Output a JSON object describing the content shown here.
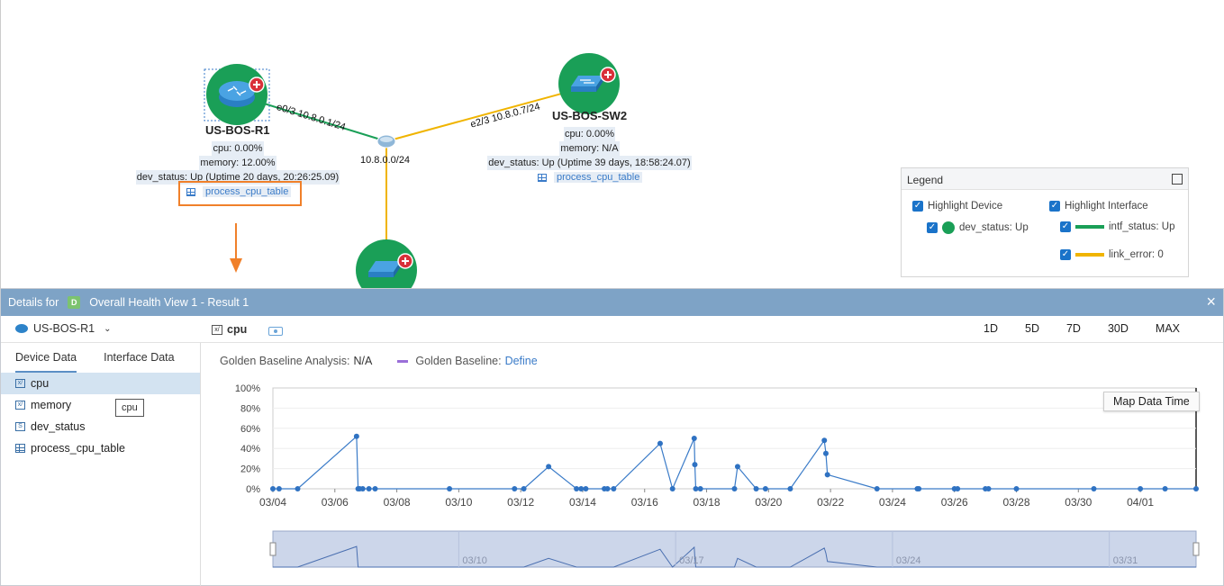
{
  "topology": {
    "devices": [
      {
        "name": "US-BOS-R1",
        "cpu": "cpu: 0.00%",
        "memory": "memory: 12.00%",
        "dev_status": "dev_status: Up (Uptime 20 days, 20:26:25.09)",
        "table": "process_cpu_table"
      },
      {
        "name": "US-BOS-SW2",
        "cpu": "cpu: 0.00%",
        "memory": "memory: N/A",
        "dev_status": "dev_status: Up (Uptime 39 days, 18:58:24.07)",
        "table": "process_cpu_table"
      }
    ],
    "links": [
      {
        "label": "e0/3 10.8.0.1/24"
      },
      {
        "label": "e2/3 10.8.0.7/24"
      }
    ],
    "network": "10.8.0.0/24"
  },
  "legend": {
    "title": "Legend",
    "highlight_device": "Highlight Device",
    "highlight_interface": "Highlight Interface",
    "dev_status": "dev_status: Up",
    "intf_status": "intf_status: Up",
    "link_error": "link_error: 0",
    "colors": {
      "up": "#1a9f57",
      "error": "#f0b400"
    }
  },
  "details": {
    "title_prefix": "Details for",
    "badge": "D",
    "title": "Overall Health View 1 - Result 1",
    "device": "US-BOS-R1",
    "active_tab": "cpu",
    "ranges": [
      "1D",
      "5D",
      "7D",
      "30D",
      "MAX"
    ],
    "left_tabs": [
      "Device Data",
      "Interface Data"
    ],
    "items": [
      {
        "label": "cpu",
        "icon": "chart-icon"
      },
      {
        "label": "memory",
        "icon": "chart-icon"
      },
      {
        "label": "dev_status",
        "icon": "string-icon"
      },
      {
        "label": "process_cpu_table",
        "icon": "table-icon"
      }
    ],
    "tooltip": "cpu",
    "golden_label": "Golden Baseline Analysis:",
    "golden_value": "N/A",
    "golden_baseline": "Golden Baseline:",
    "define": "Define",
    "map_data_time": "Map Data Time"
  },
  "chart_data": {
    "type": "line",
    "title": "",
    "xlabel": "",
    "ylabel": "",
    "ylim": [
      0,
      100
    ],
    "y_ticks": [
      "0%",
      "20%",
      "40%",
      "60%",
      "80%",
      "100%"
    ],
    "x_ticks": [
      "03/04",
      "03/06",
      "03/08",
      "03/10",
      "03/12",
      "03/14",
      "03/16",
      "03/18",
      "03/20",
      "03/22",
      "03/24",
      "03/26",
      "03/28",
      "03/30",
      "04/01"
    ],
    "navigator_ticks": [
      "03/10",
      "03/17",
      "03/24",
      "03/31"
    ],
    "series": [
      {
        "x": [
          4.0,
          4.2,
          4.8,
          6.7,
          6.75,
          6.8,
          6.9,
          7.1,
          7.3,
          9.7,
          11.8,
          12.1,
          12.9,
          13.8,
          13.95,
          14.1,
          14.7,
          14.8,
          15.0,
          16.5,
          16.9,
          17.6,
          17.62,
          17.65,
          17.8,
          18.9,
          19.0,
          19.6,
          19.9,
          20.7,
          21.8,
          21.85,
          21.9,
          23.5,
          24.8,
          24.85,
          26.0,
          26.1,
          27.0,
          27.1,
          28.0,
          30.5,
          32.0,
          32.8,
          33.8
        ],
        "y": [
          0,
          0,
          0,
          52,
          0,
          0,
          0,
          0,
          0,
          0,
          0,
          0,
          22,
          0,
          0,
          0,
          0,
          0,
          0,
          45,
          0,
          50,
          24,
          0,
          0,
          0,
          22,
          0,
          0,
          0,
          48,
          35,
          14,
          0,
          0,
          0,
          0,
          0,
          0,
          0,
          0,
          0,
          0,
          0,
          0
        ]
      }
    ]
  }
}
